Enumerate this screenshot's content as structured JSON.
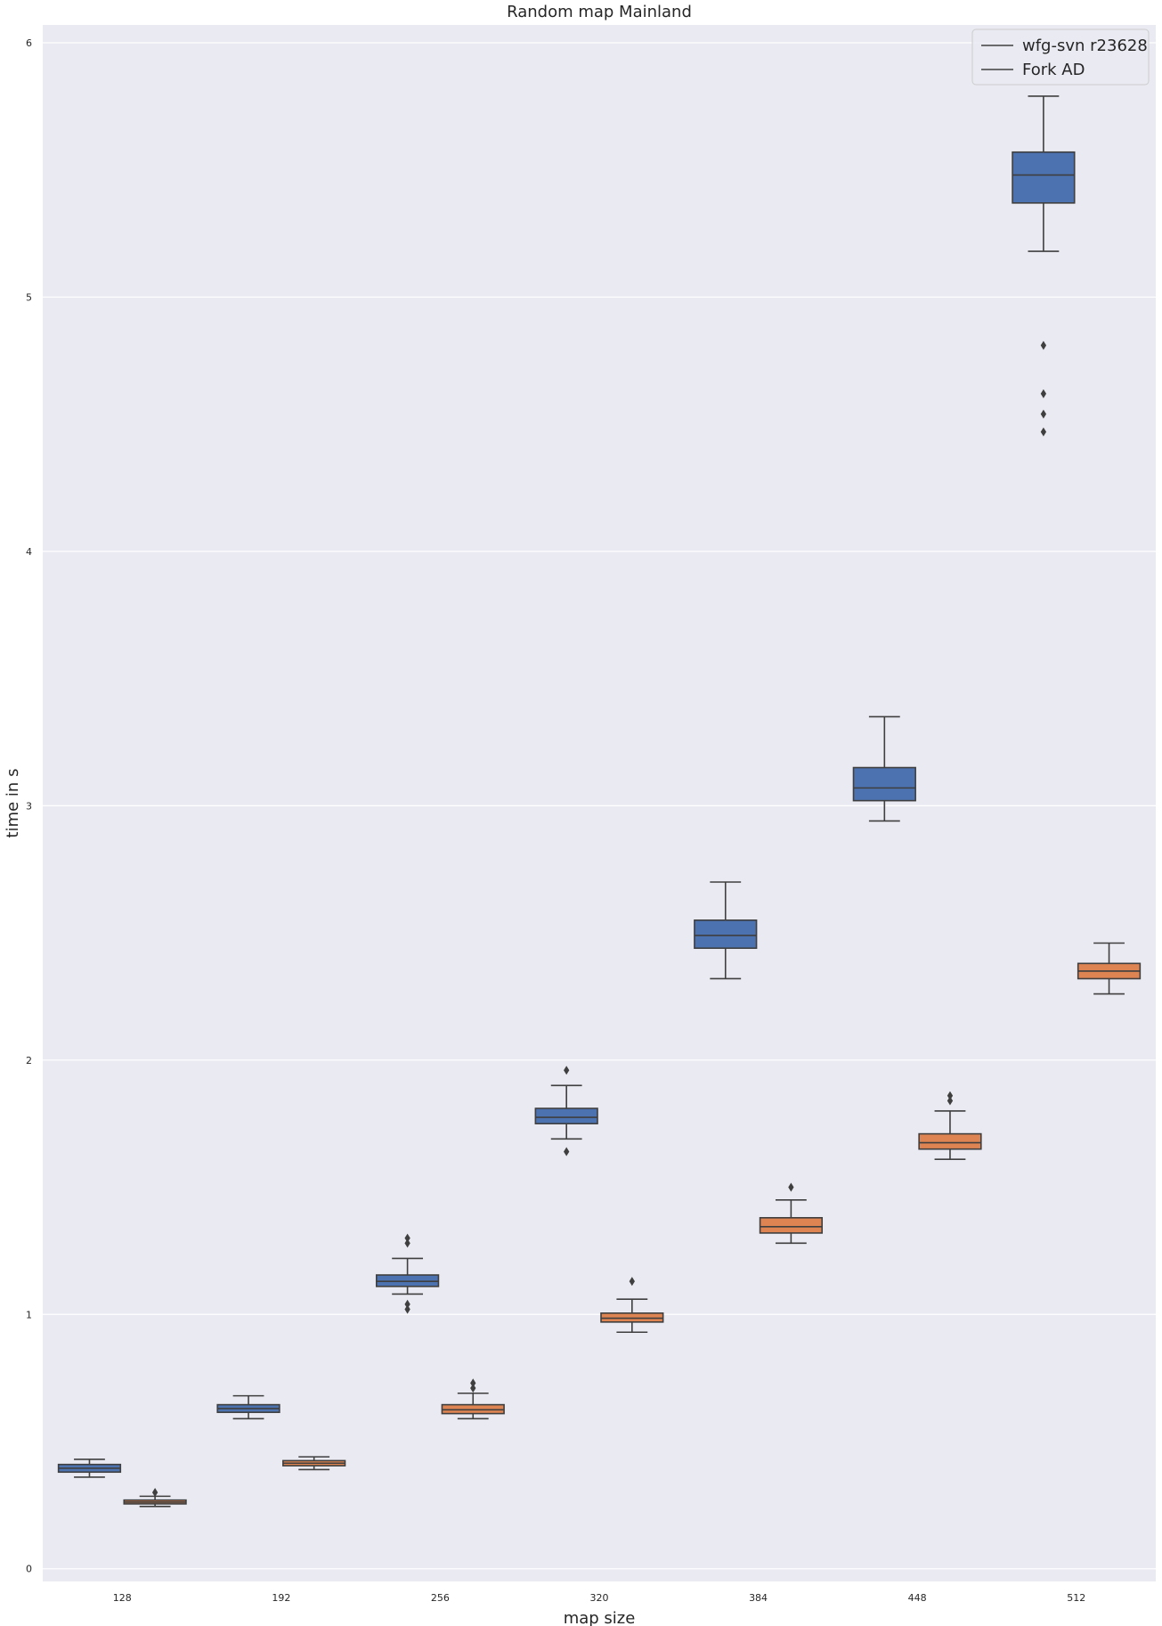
{
  "chart_data": {
    "type": "box",
    "title": "Random map Mainland",
    "xlabel": "map size",
    "ylabel": "time in s",
    "categories": [
      "128",
      "192",
      "256",
      "320",
      "384",
      "448",
      "512"
    ],
    "ylim": [
      -0.05,
      6.07
    ],
    "yticks": [
      0,
      1,
      2,
      3,
      4,
      5,
      6
    ],
    "grid": true,
    "legend_position": "top-right",
    "series": [
      {
        "name": "wfg-svn r23628",
        "color": "#4c72b0",
        "boxes": [
          {
            "whislo": 0.36,
            "q1": 0.38,
            "med": 0.395,
            "q3": 0.41,
            "whishi": 0.43,
            "fliers": []
          },
          {
            "whislo": 0.59,
            "q1": 0.615,
            "med": 0.63,
            "q3": 0.645,
            "whishi": 0.68,
            "fliers": []
          },
          {
            "whislo": 1.08,
            "q1": 1.11,
            "med": 1.13,
            "q3": 1.155,
            "whishi": 1.22,
            "fliers": [
              1.02,
              1.04,
              1.28,
              1.3
            ]
          },
          {
            "whislo": 1.69,
            "q1": 1.75,
            "med": 1.775,
            "q3": 1.81,
            "whishi": 1.9,
            "fliers": [
              1.64,
              1.96
            ]
          },
          {
            "whislo": 2.32,
            "q1": 2.44,
            "med": 2.49,
            "q3": 2.55,
            "whishi": 2.7,
            "fliers": []
          },
          {
            "whislo": 2.94,
            "q1": 3.02,
            "med": 3.07,
            "q3": 3.15,
            "whishi": 3.35,
            "fliers": []
          },
          {
            "whislo": 5.18,
            "q1": 5.37,
            "med": 5.48,
            "q3": 5.57,
            "whishi": 5.79,
            "fliers": [
              4.47,
              4.54,
              4.62,
              4.81
            ]
          }
        ]
      },
      {
        "name": "Fork AD",
        "color": "#dd8452",
        "boxes": [
          {
            "whislo": 0.245,
            "q1": 0.255,
            "med": 0.262,
            "q3": 0.27,
            "whishi": 0.285,
            "fliers": [
              0.3
            ]
          },
          {
            "whislo": 0.39,
            "q1": 0.405,
            "med": 0.415,
            "q3": 0.425,
            "whishi": 0.44,
            "fliers": []
          },
          {
            "whislo": 0.59,
            "q1": 0.61,
            "med": 0.625,
            "q3": 0.645,
            "whishi": 0.69,
            "fliers": [
              0.71,
              0.73
            ]
          },
          {
            "whislo": 0.93,
            "q1": 0.97,
            "med": 0.985,
            "q3": 1.005,
            "whishi": 1.06,
            "fliers": [
              1.13
            ]
          },
          {
            "whislo": 1.28,
            "q1": 1.32,
            "med": 1.345,
            "q3": 1.38,
            "whishi": 1.45,
            "fliers": [
              1.5
            ]
          },
          {
            "whislo": 1.61,
            "q1": 1.65,
            "med": 1.675,
            "q3": 1.71,
            "whishi": 1.8,
            "fliers": [
              1.84,
              1.86
            ]
          },
          {
            "whislo": 2.26,
            "q1": 2.32,
            "med": 2.35,
            "q3": 2.38,
            "whishi": 2.46,
            "fliers": []
          }
        ]
      }
    ]
  }
}
